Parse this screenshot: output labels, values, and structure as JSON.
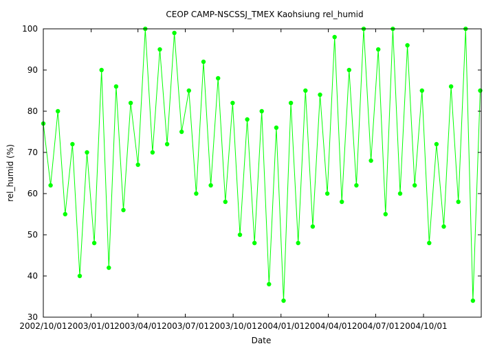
{
  "chart_data": {
    "type": "line",
    "title": "CEOP CAMP-NSCSSJ_TMEX Kaohsiung  rel_humid",
    "xlabel": "Date",
    "ylabel": "rel_humid (%)",
    "ylim": [
      30,
      100
    ],
    "yticks": [
      30,
      40,
      50,
      60,
      70,
      80,
      90,
      100
    ],
    "xlim": [
      "2002-10-01",
      "2005-01-20"
    ],
    "xticks": [
      {
        "date": "2002-10-01",
        "label": "2002/10/01"
      },
      {
        "date": "2003-01-01",
        "label": "2003/01/01"
      },
      {
        "date": "2003-04-01",
        "label": "2003/04/01"
      },
      {
        "date": "2003-07-01",
        "label": "2003/07/01"
      },
      {
        "date": "2003-10-01",
        "label": "2003/10/01"
      },
      {
        "date": "2004-01-01",
        "label": "2004/01/01"
      },
      {
        "date": "2004-04-01",
        "label": "2004/04/01"
      },
      {
        "date": "2004-07-01",
        "label": "2004/07/01"
      },
      {
        "date": "2004-10-01",
        "label": "2004/10/01"
      }
    ],
    "grid": false,
    "legend": "none",
    "series": [
      {
        "color": "#00ff00",
        "marker": "circle",
        "points": [
          [
            "2002-10-01",
            77
          ],
          [
            "2002-10-15",
            62
          ],
          [
            "2002-10-29",
            80
          ],
          [
            "2002-11-12",
            55
          ],
          [
            "2002-11-26",
            72
          ],
          [
            "2002-12-10",
            40
          ],
          [
            "2002-12-24",
            70
          ],
          [
            "2003-01-07",
            48
          ],
          [
            "2003-01-21",
            90
          ],
          [
            "2003-02-04",
            42
          ],
          [
            "2003-02-18",
            86
          ],
          [
            "2003-03-04",
            56
          ],
          [
            "2003-03-18",
            82
          ],
          [
            "2003-04-01",
            67
          ],
          [
            "2003-04-15",
            100
          ],
          [
            "2003-04-29",
            70
          ],
          [
            "2003-05-13",
            95
          ],
          [
            "2003-05-27",
            72
          ],
          [
            "2003-06-10",
            99
          ],
          [
            "2003-06-24",
            75
          ],
          [
            "2003-07-08",
            85
          ],
          [
            "2003-07-22",
            60
          ],
          [
            "2003-08-05",
            92
          ],
          [
            "2003-08-19",
            62
          ],
          [
            "2003-09-02",
            88
          ],
          [
            "2003-09-16",
            58
          ],
          [
            "2003-09-30",
            82
          ],
          [
            "2003-10-14",
            50
          ],
          [
            "2003-10-28",
            78
          ],
          [
            "2003-11-11",
            48
          ],
          [
            "2003-11-25",
            80
          ],
          [
            "2003-12-09",
            38
          ],
          [
            "2003-12-23",
            76
          ],
          [
            "2004-01-06",
            34
          ],
          [
            "2004-01-20",
            82
          ],
          [
            "2004-02-03",
            48
          ],
          [
            "2004-02-17",
            85
          ],
          [
            "2004-03-02",
            52
          ],
          [
            "2004-03-16",
            84
          ],
          [
            "2004-03-30",
            60
          ],
          [
            "2004-04-13",
            98
          ],
          [
            "2004-04-27",
            58
          ],
          [
            "2004-05-11",
            90
          ],
          [
            "2004-05-25",
            62
          ],
          [
            "2004-06-08",
            100
          ],
          [
            "2004-06-22",
            68
          ],
          [
            "2004-07-06",
            95
          ],
          [
            "2004-07-20",
            55
          ],
          [
            "2004-08-03",
            100
          ],
          [
            "2004-08-17",
            60
          ],
          [
            "2004-08-31",
            96
          ],
          [
            "2004-09-14",
            62
          ],
          [
            "2004-09-28",
            85
          ],
          [
            "2004-10-12",
            48
          ],
          [
            "2004-10-26",
            72
          ],
          [
            "2004-11-09",
            52
          ],
          [
            "2004-11-23",
            86
          ],
          [
            "2004-12-07",
            58
          ],
          [
            "2004-12-21",
            100
          ],
          [
            "2005-01-04",
            34
          ],
          [
            "2005-01-18",
            85
          ]
        ]
      }
    ]
  }
}
